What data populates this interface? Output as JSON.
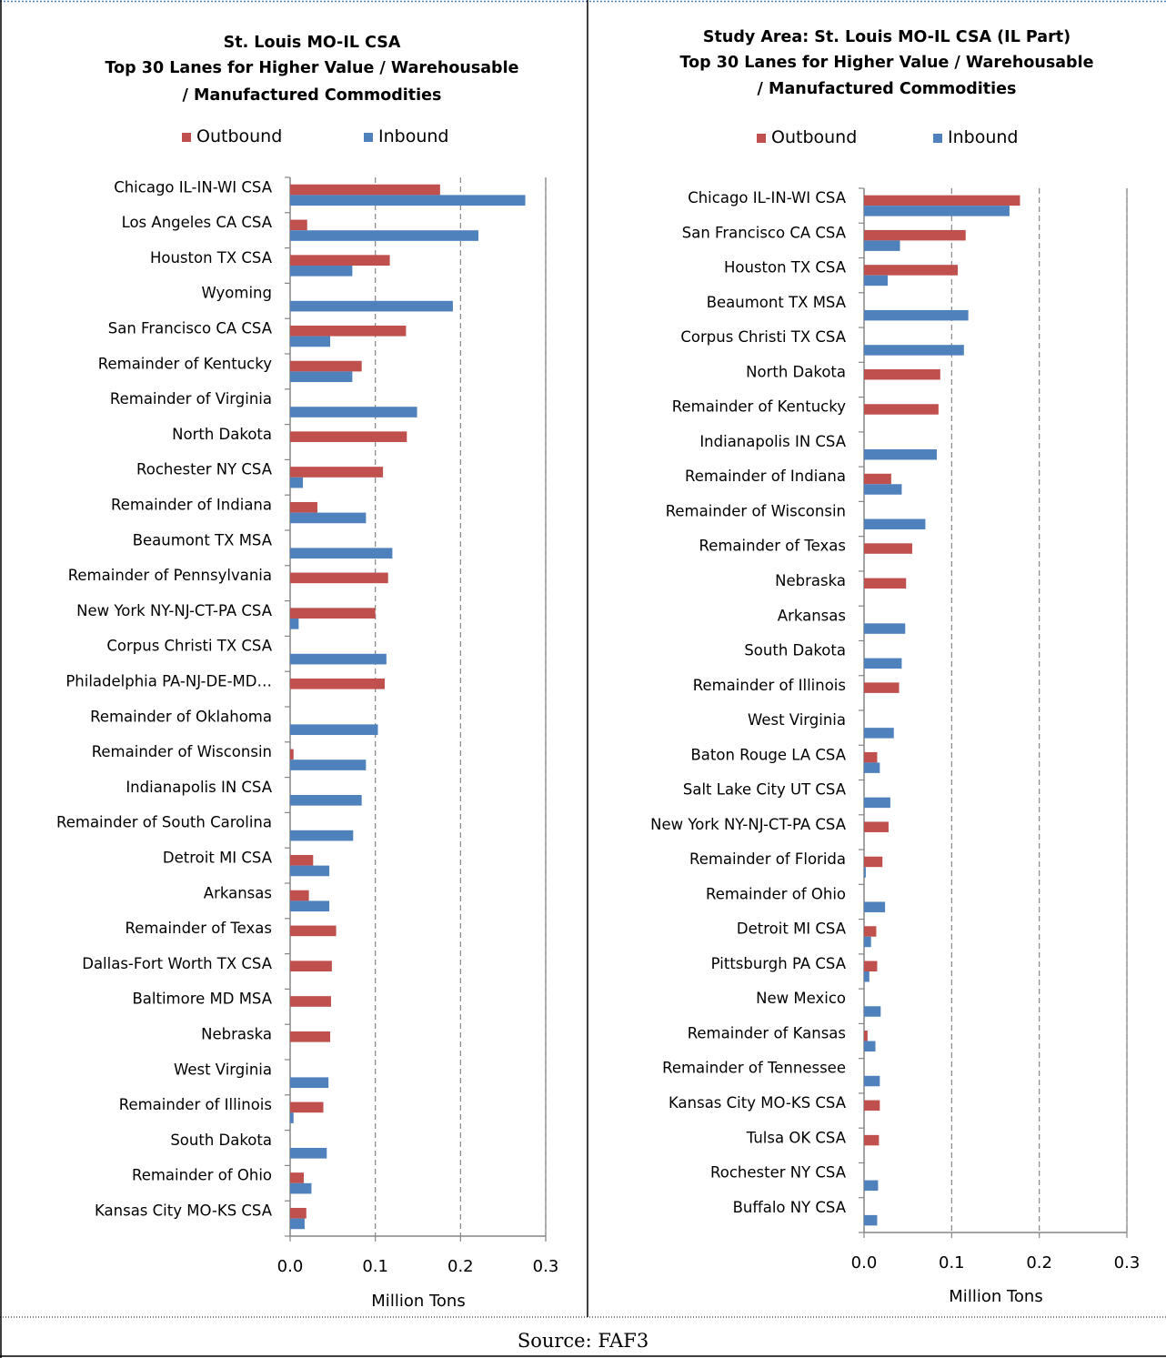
{
  "source_note": "Source: FAF3",
  "colors": {
    "outbound": "#C0504D",
    "inbound": "#4F81BD",
    "axis": "#868686",
    "grid": "#868686",
    "border": "#000000"
  },
  "chart_data": [
    {
      "type": "bar",
      "orientation": "horizontal",
      "title": [
        "St. Louis MO-IL CSA",
        "Top 30 Lanes for Higher Value / Warehousable",
        "/ Manufactured Commodities"
      ],
      "xlabel": "Million Tons",
      "xlim": [
        0,
        0.3
      ],
      "xticks": [
        "0.0",
        "0.1",
        "0.2",
        "0.3"
      ],
      "grid": "vertical dashed",
      "legend_position": "top",
      "categories": [
        "Chicago  IL-IN-WI CSA",
        "Los Angeles CA CSA",
        "Houston  TX CSA",
        "Wyoming",
        "San Francisco  CA CSA",
        "Remainder of Kentucky",
        "Remainder of Virginia",
        "North Dakota",
        "Rochester  NY CSA",
        "Remainder of Indiana",
        "Beaumont  TX MSA",
        "Remainder of Pennsylvania",
        "New York  NY-NJ-CT-PA CSA",
        "Corpus Christi  TX CSA",
        "Philadelphia  PA-NJ-DE-MD…",
        "Remainder of Oklahoma",
        "Remainder of Wisconsin",
        "Indianapolis  IN CSA",
        "Remainder of South Carolina",
        "Detroit  MI CSA",
        "Arkansas",
        "Remainder of Texas",
        "Dallas-Fort Worth  TX CSA",
        "Baltimore  MD MSA",
        "Nebraska",
        "West Virginia",
        "Remainder of Illinois",
        "South Dakota",
        "Remainder of Ohio",
        "Kansas City  MO-KS CSA"
      ],
      "series": [
        {
          "name": "Outbound",
          "values": [
            0.176,
            0.02,
            0.117,
            0,
            0.136,
            0.084,
            0,
            0.137,
            0.109,
            0.032,
            0,
            0.115,
            0.1,
            0,
            0.111,
            0,
            0.004,
            0,
            0,
            0.027,
            0.022,
            0.054,
            0.049,
            0.048,
            0.047,
            0,
            0.039,
            0,
            0.016,
            0.019
          ]
        },
        {
          "name": "Inbound",
          "values": [
            0.276,
            0.221,
            0.073,
            0.191,
            0.047,
            0.073,
            0.149,
            0,
            0.015,
            0.089,
            0.12,
            0,
            0.01,
            0.113,
            0,
            0.103,
            0.089,
            0.084,
            0.074,
            0.046,
            0.046,
            0,
            0,
            0,
            0,
            0.045,
            0.004,
            0.043,
            0.025,
            0.017
          ]
        }
      ]
    },
    {
      "type": "bar",
      "orientation": "horizontal",
      "title": [
        "Study Area: St. Louis MO-IL CSA (IL Part)",
        "Top 30 Lanes for Higher Value / Warehousable",
        "/ Manufactured Commodities"
      ],
      "xlabel": "Million Tons",
      "xlim": [
        0,
        0.3
      ],
      "xticks": [
        "0.0",
        "0.1",
        "0.2",
        "0.3"
      ],
      "grid": "vertical dashed",
      "legend_position": "top",
      "categories": [
        "Chicago  IL-IN-WI CSA",
        "San Francisco  CA CSA",
        "Houston  TX CSA",
        "Beaumont  TX MSA",
        "Corpus Christi  TX CSA",
        "North Dakota",
        "Remainder of Kentucky",
        "Indianapolis  IN CSA",
        "Remainder of Indiana",
        "Remainder of Wisconsin",
        "Remainder of Texas",
        "Nebraska",
        "Arkansas",
        "South Dakota",
        "Remainder of Illinois",
        "West Virginia",
        "Baton Rouge  LA CSA",
        "Salt Lake City  UT CSA",
        "New York  NY-NJ-CT-PA CSA",
        "Remainder of Florida",
        "Remainder of Ohio",
        "Detroit  MI CSA",
        "Pittsburgh  PA CSA",
        "New Mexico",
        "Remainder of Kansas",
        "Remainder of Tennessee",
        "Kansas City  MO-KS CSA",
        "Tulsa  OK CSA",
        "Rochester  NY CSA",
        "Buffalo  NY CSA"
      ],
      "series": [
        {
          "name": "Outbound",
          "values": [
            0.178,
            0.116,
            0.107,
            0,
            0,
            0.087,
            0.085,
            0,
            0.031,
            0,
            0.055,
            0.048,
            0,
            0,
            0.04,
            0,
            0.015,
            0,
            0.028,
            0.021,
            0,
            0.014,
            0.015,
            0,
            0.004,
            0,
            0.018,
            0.017,
            0,
            0
          ]
        },
        {
          "name": "Inbound",
          "values": [
            0.166,
            0.041,
            0.027,
            0.119,
            0.114,
            0,
            0,
            0.083,
            0.043,
            0.07,
            0,
            0,
            0.047,
            0.043,
            0,
            0.034,
            0.018,
            0.03,
            0,
            0.002,
            0.024,
            0.008,
            0.006,
            0.019,
            0.013,
            0.018,
            0,
            0,
            0.016,
            0.015
          ]
        }
      ]
    }
  ]
}
